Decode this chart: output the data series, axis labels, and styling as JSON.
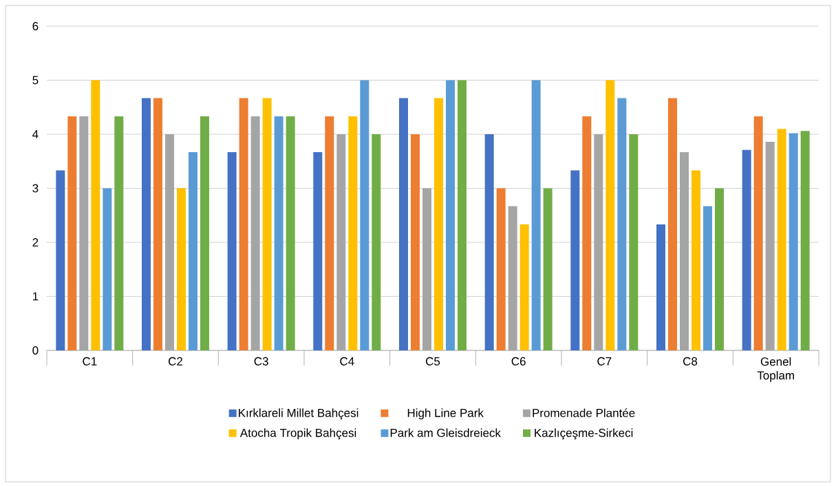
{
  "chart_data": {
    "type": "bar",
    "categories": [
      "C1",
      "C2",
      "C3",
      "C4",
      "C5",
      "C6",
      "C7",
      "C8",
      "Genel Toplam"
    ],
    "series": [
      {
        "name": "Kırklareli Millet Bahçesi",
        "color": "#4472c4",
        "values": [
          3.33,
          4.67,
          3.67,
          3.67,
          4.67,
          4,
          3.33,
          2.33,
          3.71
        ]
      },
      {
        "name": "High Line Park",
        "color": "#ed7d31",
        "values": [
          4.33,
          4.67,
          4.67,
          4.33,
          4,
          3,
          4.33,
          4.67,
          4.33
        ]
      },
      {
        "name": "Promenade Plantée",
        "color": "#a5a5a5",
        "values": [
          4.33,
          4,
          4.33,
          4,
          3,
          2.67,
          4,
          3.67,
          3.86
        ]
      },
      {
        "name": "Atocha Tropik Bahçesi",
        "color": "#ffc000",
        "values": [
          5,
          3,
          4.67,
          4.33,
          4.67,
          2.33,
          5,
          3.33,
          4.1
        ]
      },
      {
        "name": "Park am Gleisdreieck",
        "color": "#5b9bd5",
        "values": [
          3,
          3.67,
          4.33,
          5,
          5,
          5,
          4.67,
          2.67,
          4.02
        ]
      },
      {
        "name": "Kazlıçeşme-Sirkeci",
        "color": "#70ad47",
        "values": [
          4.33,
          4.33,
          4.33,
          4,
          5,
          3,
          4,
          3,
          4.06
        ]
      }
    ],
    "ylim": [
      0,
      6
    ],
    "yticks": [
      0,
      1,
      2,
      3,
      4,
      5,
      6
    ],
    "grid": "y",
    "legend": "bottom"
  }
}
